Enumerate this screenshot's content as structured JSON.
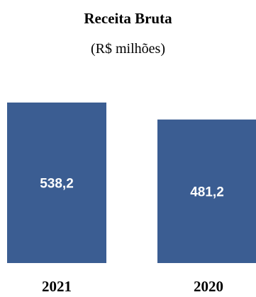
{
  "chart_data": {
    "type": "bar",
    "title": "Receita Bruta",
    "subtitle": "(R$ milhões)",
    "categories": [
      "2021",
      "2020"
    ],
    "values": [
      538.2,
      481.2
    ],
    "value_labels": [
      "538,2",
      "481,2"
    ],
    "xlabel": "",
    "ylabel": "",
    "bar_color": "#3b5d92",
    "grid": false,
    "legend": "none"
  }
}
